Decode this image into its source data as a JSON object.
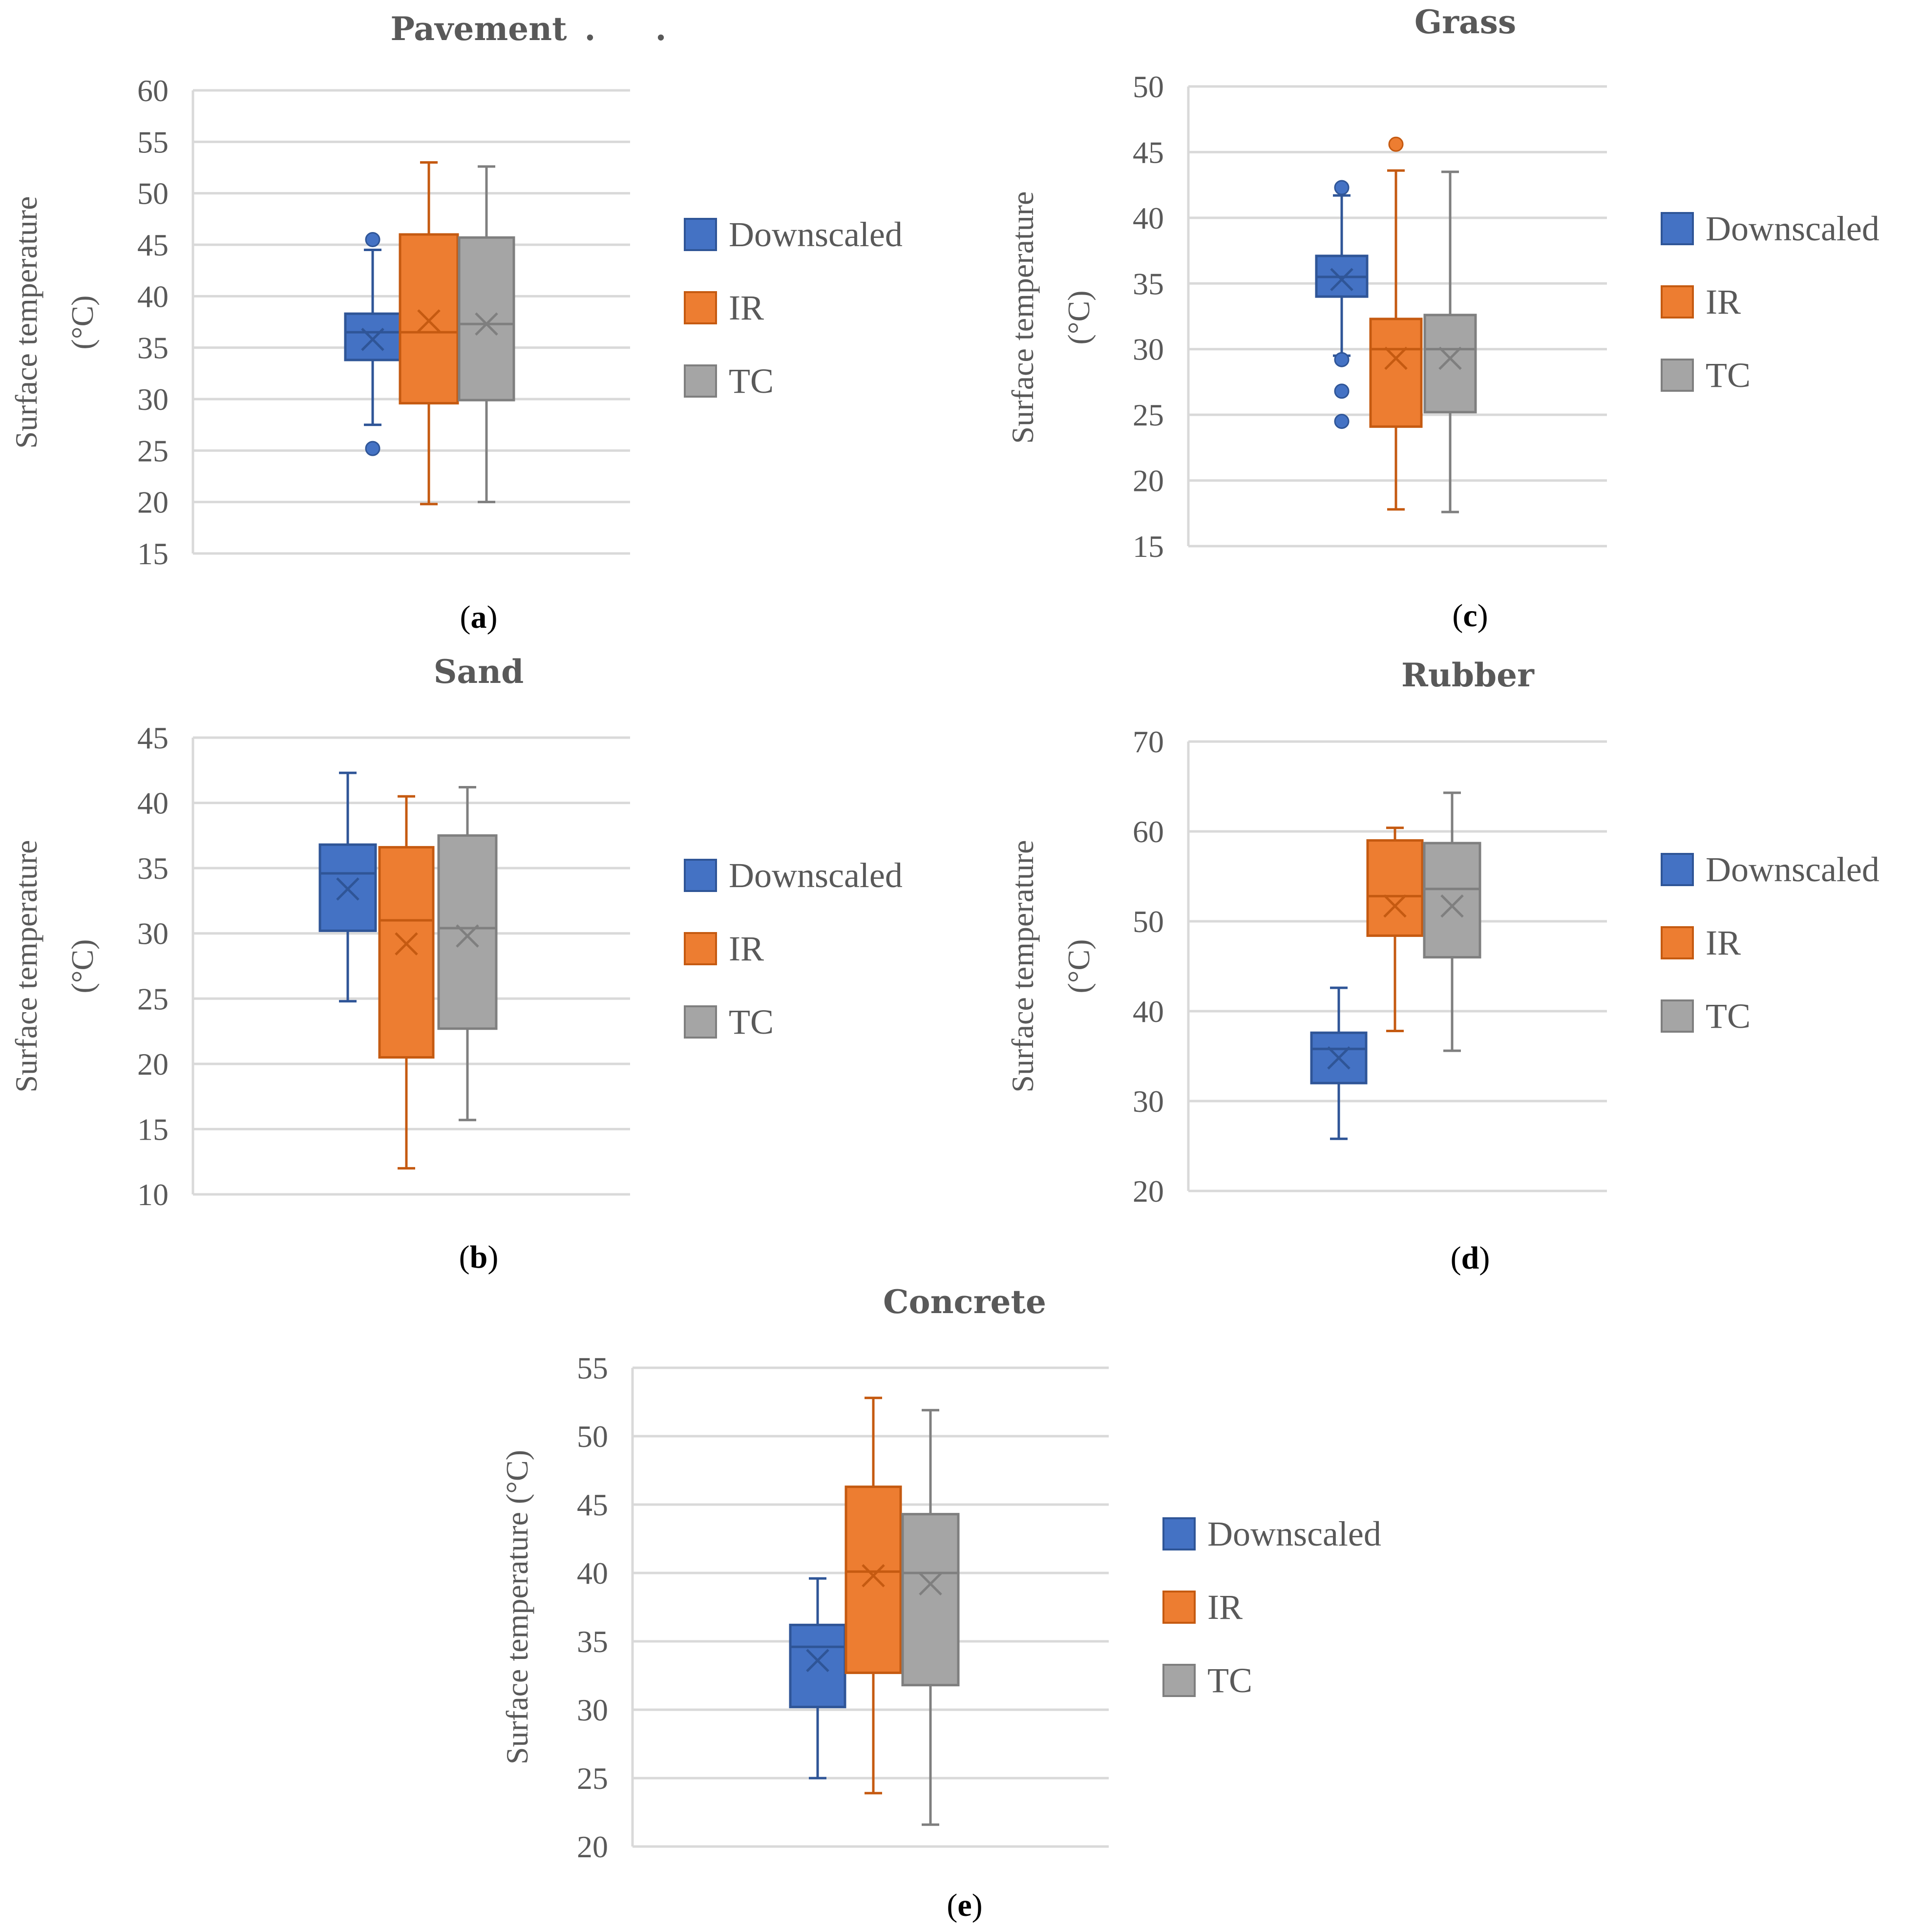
{
  "figure": {
    "legend_labels": [
      "Downscaled",
      "IR",
      "TC"
    ],
    "colors": {
      "Downscaled": "#4472c4",
      "IR": "#ed7d31",
      "TC": "#a5a5a5"
    },
    "stroke_colors": {
      "Downscaled": "#2f5597",
      "IR": "#c55a11",
      "TC": "#7f7f7f"
    }
  },
  "chart_data": [
    {
      "type": "boxplot",
      "panel": "a",
      "caption": "(a)",
      "title": "Pavement",
      "title_marks": [
        ".",
        "."
      ],
      "ylabel_lines": [
        "Surface temperature",
        "(°C)"
      ],
      "ylim": [
        15,
        60
      ],
      "yticks": [
        15,
        20,
        25,
        30,
        35,
        40,
        45,
        50,
        55,
        60
      ],
      "series": [
        {
          "name": "Downscaled",
          "min": 27.5,
          "q1": 33.8,
          "median": 36.5,
          "q3": 38.3,
          "max": 44.5,
          "mean": 35.8,
          "outliers": [
            45.5,
            25.2
          ]
        },
        {
          "name": "IR",
          "min": 19.8,
          "q1": 29.6,
          "median": 36.5,
          "q3": 46.0,
          "max": 53.0,
          "mean": 37.6,
          "outliers": []
        },
        {
          "name": "TC",
          "min": 20.0,
          "q1": 29.9,
          "median": 37.3,
          "q3": 45.7,
          "max": 52.6,
          "mean": 37.3,
          "outliers": []
        }
      ]
    },
    {
      "type": "boxplot",
      "panel": "c",
      "caption": "(c)",
      "title": "Grass",
      "title_marks": [],
      "ylabel_lines": [
        "Surface temperature",
        "(°C)"
      ],
      "ylim": [
        15,
        50
      ],
      "yticks": [
        15,
        20,
        25,
        30,
        35,
        40,
        45,
        50
      ],
      "series": [
        {
          "name": "Downscaled",
          "min": 29.5,
          "q1": 34.0,
          "median": 35.5,
          "q3": 37.1,
          "max": 41.7,
          "mean": 35.3,
          "outliers": [
            42.3,
            29.2,
            26.8,
            24.5
          ]
        },
        {
          "name": "IR",
          "min": 17.8,
          "q1": 24.1,
          "median": 30.0,
          "q3": 32.3,
          "max": 43.6,
          "mean": 29.3,
          "outliers": [
            45.6
          ]
        },
        {
          "name": "TC",
          "min": 17.6,
          "q1": 25.2,
          "median": 30.0,
          "q3": 32.6,
          "max": 43.5,
          "mean": 29.3,
          "outliers": []
        }
      ]
    },
    {
      "type": "boxplot",
      "panel": "b",
      "caption": "(b)",
      "title": "Sand",
      "title_marks": [],
      "ylabel_lines": [
        "Surface temperature",
        "(°C)"
      ],
      "ylim": [
        10,
        45
      ],
      "yticks": [
        10,
        15,
        20,
        25,
        30,
        35,
        40,
        45
      ],
      "series": [
        {
          "name": "Downscaled",
          "min": 24.8,
          "q1": 30.2,
          "median": 34.6,
          "q3": 36.8,
          "max": 42.3,
          "mean": 33.4,
          "outliers": []
        },
        {
          "name": "IR",
          "min": 12.0,
          "q1": 20.5,
          "median": 31.0,
          "q3": 36.6,
          "max": 40.5,
          "mean": 29.2,
          "outliers": []
        },
        {
          "name": "TC",
          "min": 15.7,
          "q1": 22.7,
          "median": 30.4,
          "q3": 37.5,
          "max": 41.2,
          "mean": 29.8,
          "outliers": []
        }
      ]
    },
    {
      "type": "boxplot",
      "panel": "d",
      "caption": "(d)",
      "title": "Rubber",
      "title_marks": [],
      "ylabel_lines": [
        "Surface temperature",
        "(°C)"
      ],
      "ylim": [
        20,
        70
      ],
      "yticks": [
        20,
        30,
        40,
        50,
        60,
        70
      ],
      "series": [
        {
          "name": "Downscaled",
          "min": 25.8,
          "q1": 32.0,
          "median": 35.8,
          "q3": 37.6,
          "max": 42.6,
          "mean": 34.8,
          "outliers": []
        },
        {
          "name": "IR",
          "min": 37.8,
          "q1": 48.4,
          "median": 52.8,
          "q3": 59.0,
          "max": 60.4,
          "mean": 51.7,
          "outliers": []
        },
        {
          "name": "TC",
          "min": 35.6,
          "q1": 46.0,
          "median": 53.6,
          "q3": 58.7,
          "max": 64.3,
          "mean": 51.7,
          "outliers": []
        }
      ]
    },
    {
      "type": "boxplot",
      "panel": "e",
      "caption": "(e)",
      "title": "Concrete",
      "title_marks": [],
      "ylabel_lines": [
        "Surface temperature (°C)"
      ],
      "ylim": [
        20,
        55
      ],
      "yticks": [
        20,
        25,
        30,
        35,
        40,
        45,
        50,
        55
      ],
      "series": [
        {
          "name": "Downscaled",
          "min": 25.0,
          "q1": 30.2,
          "median": 34.6,
          "q3": 36.2,
          "max": 39.6,
          "mean": 33.6,
          "outliers": []
        },
        {
          "name": "IR",
          "min": 23.9,
          "q1": 32.7,
          "median": 40.1,
          "q3": 46.3,
          "max": 52.8,
          "mean": 39.8,
          "outliers": []
        },
        {
          "name": "TC",
          "min": 21.6,
          "q1": 31.8,
          "median": 40.0,
          "q3": 44.3,
          "max": 51.9,
          "mean": 39.2,
          "outliers": []
        }
      ]
    }
  ]
}
